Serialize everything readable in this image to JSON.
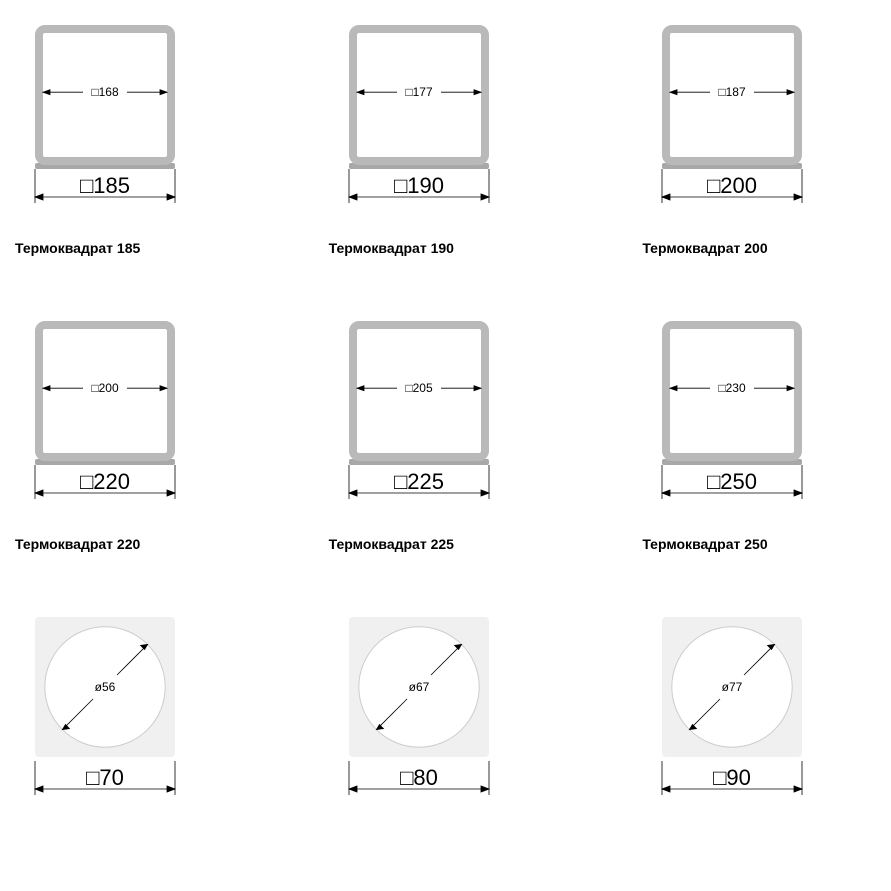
{
  "background_color": "#ffffff",
  "text_color": "#000000",
  "caption_fontsize": 14,
  "caption_fontweight": 700,
  "outer_dim_fontsize": 22,
  "inner_dim_fontsize": 12,
  "square_symbol": "□",
  "diameter_symbol": "ø",
  "frame_stroke": "#b9b9b9",
  "frame_stroke_width": 8,
  "frame_corner_radius": 6,
  "frame_shadow_color": "#a8a8a8",
  "dim_line_stroke": "#000000",
  "dim_line_width": 0.8,
  "circle_fill": "#ffffff",
  "circle_stroke": "#cccccc",
  "plate_fill": "#f0f0f0",
  "plate_corner_radius": 4,
  "items": [
    {
      "type": "square",
      "outer": "185",
      "inner": "168",
      "caption": "Термоквадрат 185"
    },
    {
      "type": "square",
      "outer": "190",
      "inner": "177",
      "caption": "Термоквадрат 190"
    },
    {
      "type": "square",
      "outer": "200",
      "inner": "187",
      "caption": "Термоквадрат 200"
    },
    {
      "type": "square",
      "outer": "220",
      "inner": "200",
      "caption": "Термоквадрат 220"
    },
    {
      "type": "square",
      "outer": "225",
      "inner": "205",
      "caption": "Термоквадрат 225"
    },
    {
      "type": "square",
      "outer": "250",
      "inner": "230",
      "caption": "Термоквадрат 250"
    },
    {
      "type": "circle",
      "outer": "70",
      "inner": "56",
      "caption": ""
    },
    {
      "type": "circle",
      "outer": "80",
      "inner": "67",
      "caption": ""
    },
    {
      "type": "circle",
      "outer": "90",
      "inner": "77",
      "caption": ""
    }
  ]
}
